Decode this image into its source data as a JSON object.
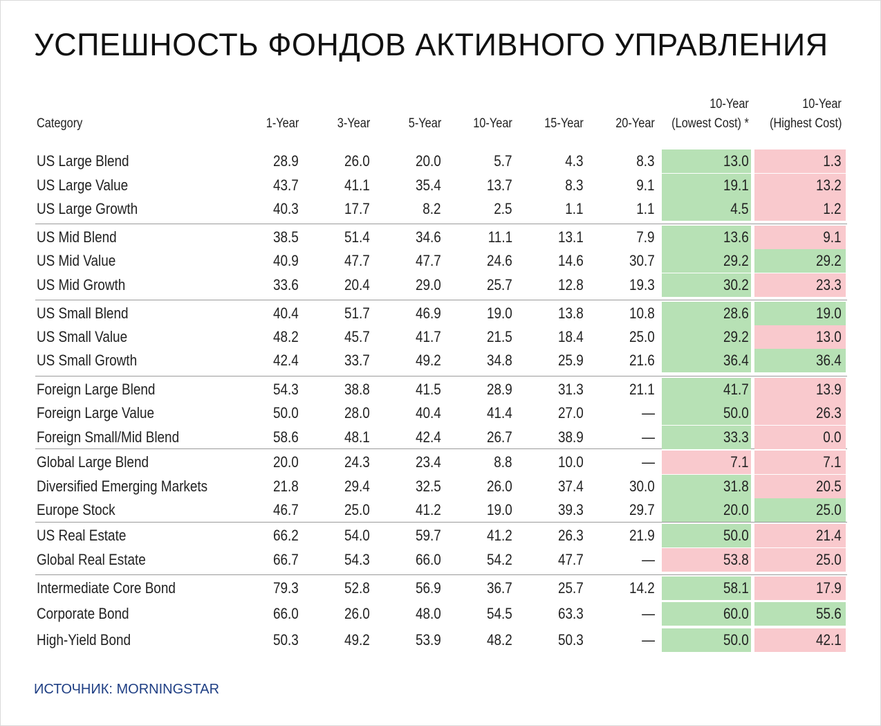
{
  "title": "УСПЕШНОСТЬ ФОНДОВ АКТИВНОГО УПРАВЛЕНИЯ",
  "source": "ИСТОЧНИК: MORNINGSTAR",
  "colors": {
    "green": "#b7e1b5",
    "pink": "#f9c9cd",
    "title": "#111111",
    "source": "#1f3f84"
  },
  "chart_data": {
    "type": "table",
    "columns": [
      {
        "line1": "",
        "line2": "Category"
      },
      {
        "line1": "",
        "line2": "1-Year"
      },
      {
        "line1": "",
        "line2": "3-Year"
      },
      {
        "line1": "",
        "line2": "5-Year"
      },
      {
        "line1": "",
        "line2": "10-Year"
      },
      {
        "line1": "",
        "line2": "15-Year"
      },
      {
        "line1": "",
        "line2": "20-Year"
      },
      {
        "line1": "10-Year",
        "line2": "(Lowest Cost) *"
      },
      {
        "line1": "10-Year",
        "line2": "(Highest Cost)"
      }
    ],
    "rows": [
      {
        "category": "US Large Blend",
        "values": [
          "28.9",
          "26.0",
          "20.0",
          "5.7",
          "4.3",
          "8.3",
          "13.0",
          "1.3"
        ],
        "lowest_color": "green",
        "highest_color": "pink"
      },
      {
        "category": "US Large Value",
        "values": [
          "43.7",
          "41.1",
          "35.4",
          "13.7",
          "8.3",
          "9.1",
          "19.1",
          "13.2"
        ],
        "lowest_color": "green",
        "highest_color": "pink"
      },
      {
        "category": "US Large Growth",
        "values": [
          "40.3",
          "17.7",
          "8.2",
          "2.5",
          "1.1",
          "1.1",
          "4.5",
          "1.2"
        ],
        "lowest_color": "green",
        "highest_color": "pink"
      },
      {
        "category": "US Mid Blend",
        "values": [
          "38.5",
          "51.4",
          "34.6",
          "11.1",
          "13.1",
          "7.9",
          "13.6",
          "9.1"
        ],
        "lowest_color": "green",
        "highest_color": "pink"
      },
      {
        "category": "US Mid Value",
        "values": [
          "40.9",
          "47.7",
          "47.7",
          "24.6",
          "14.6",
          "30.7",
          "29.2",
          "29.2"
        ],
        "lowest_color": "green",
        "highest_color": "green"
      },
      {
        "category": "US Mid Growth",
        "values": [
          "33.6",
          "20.4",
          "29.0",
          "25.7",
          "12.8",
          "19.3",
          "30.2",
          "23.3"
        ],
        "lowest_color": "green",
        "highest_color": "pink"
      },
      {
        "category": "US Small Blend",
        "values": [
          "40.4",
          "51.7",
          "46.9",
          "19.0",
          "13.8",
          "10.8",
          "28.6",
          "19.0"
        ],
        "lowest_color": "green",
        "highest_color": "green"
      },
      {
        "category": "US Small Value",
        "values": [
          "48.2",
          "45.7",
          "41.7",
          "21.5",
          "18.4",
          "25.0",
          "29.2",
          "13.0"
        ],
        "lowest_color": "green",
        "highest_color": "pink"
      },
      {
        "category": "US Small Growth",
        "values": [
          "42.4",
          "33.7",
          "49.2",
          "34.8",
          "25.9",
          "21.6",
          "36.4",
          "36.4"
        ],
        "lowest_color": "green",
        "highest_color": "green"
      },
      {
        "category": "Foreign Large Blend",
        "values": [
          "54.3",
          "38.8",
          "41.5",
          "28.9",
          "31.3",
          "21.1",
          "41.7",
          "13.9"
        ],
        "lowest_color": "green",
        "highest_color": "pink"
      },
      {
        "category": "Foreign Large Value",
        "values": [
          "50.0",
          "28.0",
          "40.4",
          "41.4",
          "27.0",
          "—",
          "50.0",
          "26.3"
        ],
        "lowest_color": "green",
        "highest_color": "pink"
      },
      {
        "category": "Foreign Small/Mid Blend",
        "values": [
          "58.6",
          "48.1",
          "42.4",
          "26.7",
          "38.9",
          "—",
          "33.3",
          "0.0"
        ],
        "lowest_color": "green",
        "highest_color": "pink"
      },
      {
        "category": "Global Large Blend",
        "values": [
          "20.0",
          "24.3",
          "23.4",
          "8.8",
          "10.0",
          "—",
          "7.1",
          "7.1"
        ],
        "lowest_color": "pink",
        "highest_color": "pink"
      },
      {
        "category": "Diversified Emerging Markets",
        "values": [
          "21.8",
          "29.4",
          "32.5",
          "26.0",
          "37.4",
          "30.0",
          "31.8",
          "20.5"
        ],
        "lowest_color": "green",
        "highest_color": "pink"
      },
      {
        "category": "Europe Stock",
        "values": [
          "46.7",
          "25.0",
          "41.2",
          "19.0",
          "39.3",
          "29.7",
          "20.0",
          "25.0"
        ],
        "lowest_color": "green",
        "highest_color": "green"
      },
      {
        "category": "US Real Estate",
        "values": [
          "66.2",
          "54.0",
          "59.7",
          "41.2",
          "26.3",
          "21.9",
          "50.0",
          "21.4"
        ],
        "lowest_color": "green",
        "highest_color": "pink"
      },
      {
        "category": "Global Real Estate",
        "values": [
          "66.7",
          "54.3",
          "66.0",
          "54.2",
          "47.7",
          "—",
          "53.8",
          "25.0"
        ],
        "lowest_color": "pink",
        "highest_color": "pink"
      },
      {
        "category": "Intermediate Core Bond",
        "values": [
          "79.3",
          "52.8",
          "56.9",
          "36.7",
          "25.7",
          "14.2",
          "58.1",
          "17.9"
        ],
        "lowest_color": "green",
        "highest_color": "pink"
      },
      {
        "category": "Corporate Bond",
        "values": [
          "66.0",
          "26.0",
          "48.0",
          "54.5",
          "63.3",
          "—",
          "60.0",
          "55.6"
        ],
        "lowest_color": "green",
        "highest_color": "green"
      },
      {
        "category": "High-Yield Bond",
        "values": [
          "50.3",
          "49.2",
          "53.9",
          "48.2",
          "50.3",
          "—",
          "50.0",
          "42.1"
        ],
        "lowest_color": "green",
        "highest_color": "pink"
      }
    ]
  }
}
